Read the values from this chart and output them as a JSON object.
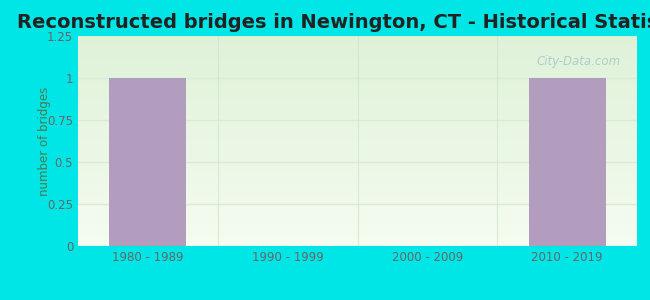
{
  "title": "Reconstructed bridges in Newington, CT - Historical Statistics",
  "categories": [
    "1980 - 1989",
    "1990 - 1999",
    "2000 - 2009",
    "2010 - 2019"
  ],
  "values": [
    1,
    0,
    0,
    1
  ],
  "bar_color": "#b39dbe",
  "bar_edge_color": "#a08ab0",
  "ylabel": "number of bridges",
  "ylim": [
    0,
    1.25
  ],
  "yticks": [
    0,
    0.25,
    0.5,
    0.75,
    1,
    1.25
  ],
  "ytick_labels": [
    "0",
    "0.25",
    "0.5",
    "0.75",
    "1",
    "1.25"
  ],
  "background_color": "#00e5e5",
  "plot_bg_top": "#f0f8ec",
  "plot_bg_bottom": "#e8f5e2",
  "grid_color": "#d8ead8",
  "title_fontsize": 14,
  "title_color": "#222222",
  "axis_label_color": "#4a7a4a",
  "tick_label_color": "#666666",
  "watermark_text": "City-Data.com",
  "bar_width": 0.55
}
